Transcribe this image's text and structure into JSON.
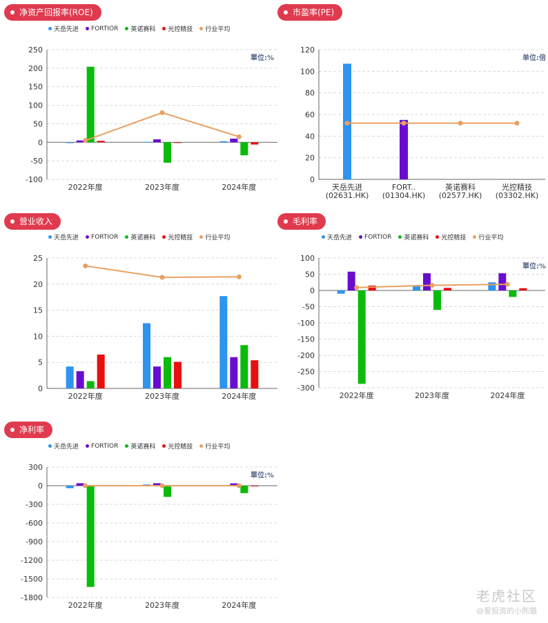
{
  "legend": [
    "天岳先进",
    "FORTIOR",
    "英诺赛科",
    "光控精技",
    "行业平均"
  ],
  "colors": [
    "#2f93f0",
    "#6a0cd0",
    "#0bbb0b",
    "#e80f0f",
    "#e8a060"
  ],
  "watermark": {
    "brand": "老虎社区",
    "user": "@爱投资的小熊猫"
  },
  "chart_data": [
    {
      "id": "roe",
      "type": "bar",
      "title": "净资产回报率(ROE)",
      "unit": "單位:%",
      "categories": [
        "2022年度",
        "2023年度",
        "2024年度"
      ],
      "yticks": [
        -100,
        -50,
        0,
        50,
        100,
        150,
        200,
        250
      ],
      "ylim": [
        -100,
        250
      ],
      "series": [
        {
          "name": "天岳先进",
          "values": [
            -2,
            1,
            3
          ]
        },
        {
          "name": "FORTIOR",
          "values": [
            5,
            8,
            10
          ]
        },
        {
          "name": "英诺赛科",
          "values": [
            204,
            -55,
            -35
          ]
        },
        {
          "name": "光控精技",
          "values": [
            4,
            -1,
            -6
          ]
        }
      ],
      "line": {
        "name": "行业平均",
        "values": [
          5,
          80,
          15
        ]
      }
    },
    {
      "id": "pe",
      "type": "bar",
      "title": "市盈率(PE)",
      "unit": "单位:倍",
      "categories": [
        "天岳先进\n(02631.HK)",
        "FORT..\n(01304.HK)",
        "英诺赛科\n(02577.HK)",
        "光控精技\n(03302.HK)"
      ],
      "yticks": [
        0,
        20,
        40,
        60,
        80,
        100,
        120
      ],
      "ylim": [
        0,
        120
      ],
      "bars": [
        {
          "value": 107,
          "color_index": 0
        },
        {
          "value": 55,
          "color_index": 1
        },
        {
          "value": 0,
          "color_index": 2
        },
        {
          "value": 0,
          "color_index": 3
        }
      ],
      "line": {
        "name": "行业平均",
        "values": [
          52,
          52,
          52,
          52
        ]
      }
    },
    {
      "id": "rev",
      "type": "bar",
      "title": "营业收入",
      "unit": "",
      "categories": [
        "2022年度",
        "2023年度",
        "2024年度"
      ],
      "yticks": [
        0,
        5,
        10,
        15,
        20,
        25
      ],
      "ylim": [
        0,
        25
      ],
      "series": [
        {
          "name": "天岳先进",
          "values": [
            4.2,
            12.5,
            17.7
          ]
        },
        {
          "name": "FORTIOR",
          "values": [
            3.3,
            4.2,
            6.0
          ]
        },
        {
          "name": "英诺赛科",
          "values": [
            1.4,
            6.0,
            8.3
          ]
        },
        {
          "name": "光控精技",
          "values": [
            6.5,
            5.1,
            5.4
          ]
        }
      ],
      "line": {
        "name": "行业平均",
        "values": [
          23.5,
          21.3,
          21.4
        ]
      }
    },
    {
      "id": "gm",
      "type": "bar",
      "title": "毛利率",
      "unit": "單位:%",
      "categories": [
        "2022年度",
        "2023年度",
        "2024年度"
      ],
      "yticks": [
        -300,
        -250,
        -200,
        -150,
        -100,
        -50,
        0,
        50,
        100
      ],
      "ylim": [
        -300,
        100
      ],
      "series": [
        {
          "name": "天岳先进",
          "values": [
            -10,
            15,
            25
          ]
        },
        {
          "name": "FORTIOR",
          "values": [
            58,
            53,
            53
          ]
        },
        {
          "name": "英诺赛科",
          "values": [
            -288,
            -60,
            -20
          ]
        },
        {
          "name": "光控精技",
          "values": [
            15,
            8,
            7
          ]
        }
      ],
      "line": {
        "name": "行业平均",
        "values": [
          9,
          16,
          19
        ]
      }
    },
    {
      "id": "nm",
      "type": "bar",
      "title": "净利率",
      "unit": "單位:%",
      "categories": [
        "2022年度",
        "2023年度",
        "2024年度"
      ],
      "yticks": [
        -1800,
        -1500,
        -1200,
        -900,
        -600,
        -300,
        0,
        300
      ],
      "ylim": [
        -1800,
        300
      ],
      "series": [
        {
          "name": "天岳先进",
          "values": [
            -40,
            20,
            8
          ]
        },
        {
          "name": "FORTIOR",
          "values": [
            40,
            40,
            38
          ]
        },
        {
          "name": "英诺赛科",
          "values": [
            -1630,
            -180,
            -120
          ]
        },
        {
          "name": "光控精技",
          "values": [
            5,
            -2,
            -4
          ]
        }
      ],
      "line": {
        "name": "行业平均",
        "values": [
          0,
          0,
          0
        ]
      }
    }
  ]
}
